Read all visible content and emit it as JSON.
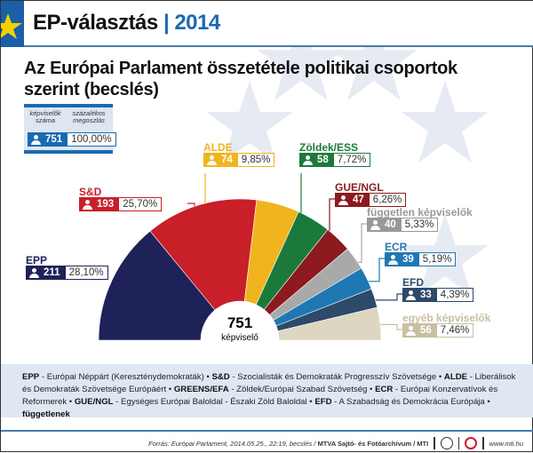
{
  "header": {
    "title": "EP-választás",
    "year": "2014"
  },
  "title": "Az Európai Parlament összetétele politikai csoportok szerint (becslés)",
  "key": {
    "label_count": "képviselők száma",
    "label_pct": "százalékos megoszlás",
    "total": "751",
    "pct": "100,00%"
  },
  "center": {
    "value": "751",
    "label": "képviselő"
  },
  "chart_data": {
    "type": "pie",
    "shape": "semicircle",
    "total": 751,
    "series": [
      {
        "name": "EPP",
        "value": 211,
        "pct": "28,10%",
        "color": "#1f2159"
      },
      {
        "name": "S&D",
        "value": 193,
        "pct": "25,70%",
        "color": "#c81f28"
      },
      {
        "name": "ALDE",
        "value": 74,
        "pct": "9,85%",
        "color": "#f0b51e"
      },
      {
        "name": "Zöldek/ESS",
        "value": 58,
        "pct": "7,72%",
        "color": "#1b7a3b"
      },
      {
        "name": "GUE/NGL",
        "value": 47,
        "pct": "6,26%",
        "color": "#8c1a1f"
      },
      {
        "name": "független képviselők",
        "value": 40,
        "pct": "5,33%",
        "color": "#a9a9a9"
      },
      {
        "name": "ECR",
        "value": 39,
        "pct": "5,19%",
        "color": "#1f78b4"
      },
      {
        "name": "EFD",
        "value": 33,
        "pct": "4,39%",
        "color": "#2d4a69"
      },
      {
        "name": "egyéb képviselők",
        "value": 56,
        "pct": "7,46%",
        "color": "#ddd6c1"
      }
    ]
  },
  "legend_html": [
    [
      "EPP",
      " - Európai Néppárt (Kereszténydemokraták) • "
    ],
    [
      "S&D",
      " - Szocialisták és Demokraták Progresszív Szövetsége • "
    ],
    [
      "ALDE",
      " - Liberálisok és Demokraták Szövetsége Európáért • "
    ],
    [
      "GREENS/EFA",
      " - Zöldek/Európai Szabad Szövetség • "
    ],
    [
      "ECR",
      " - Európai Konzervatívok és Reformerek • "
    ],
    [
      "GUE/NGL",
      " - Egységes Európai Baloldal - Északi Zöld Baloldal • "
    ],
    [
      "EFD",
      " - A Szabadság és Demokrácia Európája • "
    ],
    [
      "függetlenek",
      ""
    ]
  ],
  "source": {
    "text": "Forrás: Európai Parlament, 2014.05.25., 22:19, becslés / ",
    "agency": "MTVA Sajtó- és Fotóarchívum / MTI",
    "url": "www.mti.hu"
  }
}
